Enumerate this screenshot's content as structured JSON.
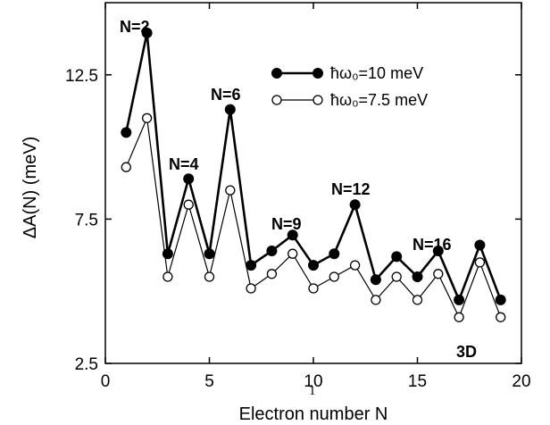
{
  "chart_data": {
    "type": "line",
    "xlabel": "Electron number N",
    "ylabel": "ΔA(N) (meV)",
    "xlim": [
      0,
      20
    ],
    "ylim": [
      2.5,
      15.0
    ],
    "x_ticks": [
      0,
      5,
      10,
      15,
      20
    ],
    "y_ticks": [
      2.5,
      7.5,
      12.5
    ],
    "x": [
      1,
      2,
      3,
      4,
      5,
      6,
      7,
      8,
      9,
      10,
      11,
      12,
      13,
      14,
      15,
      16,
      17,
      18,
      19
    ],
    "series": [
      {
        "name": "ħω₀=10 meV",
        "marker": "filled-circle",
        "line_width": "thick",
        "values": [
          10.5,
          13.95,
          6.3,
          8.9,
          6.3,
          11.3,
          5.9,
          6.4,
          6.95,
          5.9,
          6.3,
          8.0,
          5.4,
          6.2,
          5.5,
          6.4,
          4.7,
          6.6,
          4.7
        ]
      },
      {
        "name": "ħω₀=7.5 meV",
        "marker": "open-circle",
        "line_width": "thin",
        "values": [
          9.3,
          11.0,
          5.5,
          8.0,
          5.5,
          8.5,
          5.1,
          5.6,
          6.3,
          5.1,
          5.5,
          5.9,
          4.7,
          5.5,
          4.7,
          5.6,
          4.1,
          6.0,
          4.1
        ]
      }
    ],
    "annotations": [
      {
        "text": "N=2",
        "x": 2
      },
      {
        "text": "N=4",
        "x": 4
      },
      {
        "text": "N=6",
        "x": 6
      },
      {
        "text": "N=9",
        "x": 9
      },
      {
        "text": "N=12",
        "x": 12
      },
      {
        "text": "N=16",
        "x": 16
      },
      {
        "text": "3D",
        "x": 18
      }
    ],
    "stray_mark": "1",
    "legend_position": "top-right",
    "grid": false
  }
}
